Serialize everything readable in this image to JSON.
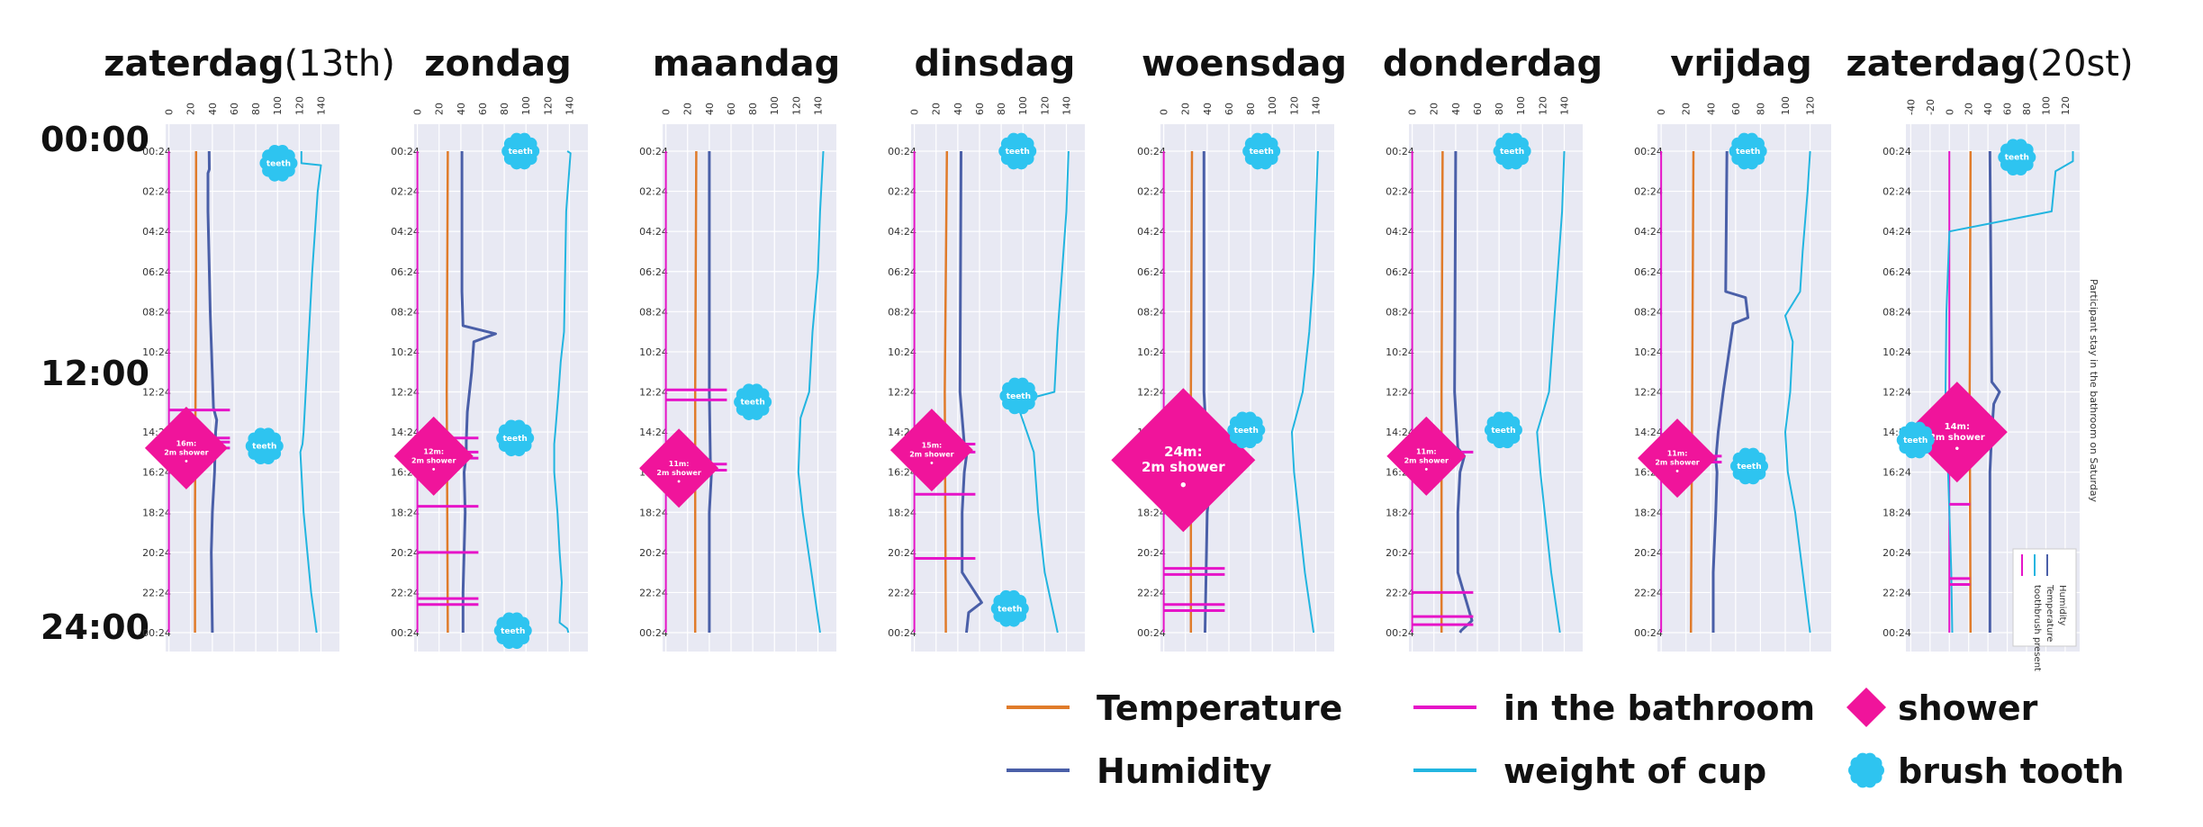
{
  "chart_data": {
    "type": "line",
    "row_labels": [
      "00:00",
      "12:00",
      "24:00"
    ],
    "y_tick_labels": [
      "00:24",
      "02:24",
      "04:24",
      "06:24",
      "08:24",
      "10:24",
      "12:24",
      "14:24",
      "16:24",
      "18:24",
      "20:24",
      "22:24",
      "00:24"
    ],
    "side_note": "Participant stay in the bathroom on Saturday",
    "colors": {
      "temperature": "#e07b2a",
      "humidity": "#4a5fa8",
      "bathroom": "#e614c8",
      "cup": "#22b5e0",
      "shower": "#f0149b",
      "brush": "#2ec4f0",
      "panel_bg": "#e8e9f3"
    },
    "legend": {
      "temperature": "Temperature",
      "humidity": "Humidity",
      "bathroom": "in the bathroom",
      "cup": "weight of cup",
      "shower": "shower",
      "brush": "brush tooth"
    },
    "inner_legend": [
      "Humidity",
      "Temperature",
      "toothbrush present"
    ],
    "days": [
      {
        "name": "zaterdag",
        "suffix": "(13th)",
        "x_ticks": [
          0,
          20,
          40,
          60,
          80,
          100,
          120,
          140
        ],
        "xlim": [
          -3,
          157
        ],
        "temperature": [
          [
            0,
            25
          ],
          [
            6,
            25
          ],
          [
            12,
            24.5
          ],
          [
            18,
            24
          ],
          [
            24,
            24
          ]
        ],
        "humidity": [
          [
            0,
            37
          ],
          [
            0.9,
            37.2
          ],
          [
            1.1,
            36
          ],
          [
            3,
            36
          ],
          [
            8,
            38
          ],
          [
            12.8,
            41
          ],
          [
            13.4,
            44
          ],
          [
            14,
            43
          ],
          [
            16,
            42
          ],
          [
            18,
            40
          ],
          [
            20,
            39
          ],
          [
            24,
            40
          ]
        ],
        "cup": [
          [
            0,
            122
          ],
          [
            0.6,
            122
          ],
          [
            0.7,
            140
          ],
          [
            2,
            137
          ],
          [
            6,
            132
          ],
          [
            10,
            128
          ],
          [
            14,
            124
          ],
          [
            14.6,
            123
          ],
          [
            15,
            121
          ],
          [
            18,
            124
          ],
          [
            22,
            131
          ],
          [
            24,
            136
          ]
        ],
        "bathroom": [
          12.9,
          14.3,
          14.5,
          14.8
        ],
        "showers": [
          {
            "t": 14.8,
            "x": 16,
            "size": 46,
            "label": "16m:\n2m shower"
          }
        ],
        "brushes": [
          {
            "t": 0.6,
            "x": 101
          },
          {
            "t": 14.7,
            "x": 88
          }
        ]
      },
      {
        "name": "zondag",
        "suffix": "",
        "x_ticks": [
          0,
          20,
          40,
          60,
          80,
          100,
          120,
          140
        ],
        "xlim": [
          -3,
          157
        ],
        "temperature": [
          [
            0,
            28
          ],
          [
            12,
            27
          ],
          [
            24,
            28
          ]
        ],
        "humidity": [
          [
            0,
            41
          ],
          [
            7,
            41
          ],
          [
            8.7,
            42
          ],
          [
            9.1,
            72
          ],
          [
            9.5,
            52
          ],
          [
            11,
            50
          ],
          [
            12,
            48
          ],
          [
            13,
            46
          ],
          [
            14.5,
            45
          ],
          [
            15.2,
            45
          ],
          [
            16,
            43
          ],
          [
            18,
            44
          ],
          [
            20,
            43
          ],
          [
            22,
            42
          ],
          [
            24,
            42
          ]
        ],
        "cup": [
          [
            0,
            138
          ],
          [
            0.1,
            141
          ],
          [
            3,
            137
          ],
          [
            6,
            136
          ],
          [
            9,
            135
          ],
          [
            10.5,
            132
          ],
          [
            12,
            130
          ],
          [
            14,
            127
          ],
          [
            14.6,
            126
          ],
          [
            16,
            126
          ],
          [
            18,
            129
          ],
          [
            20,
            131
          ],
          [
            21.5,
            133
          ],
          [
            23.5,
            131
          ],
          [
            23.8,
            138
          ],
          [
            24,
            139
          ]
        ],
        "bathroom": [
          14.3,
          15,
          15.3,
          17.7,
          20,
          22.3,
          22.6
        ],
        "showers": [
          {
            "t": 15.2,
            "x": 15,
            "size": 44,
            "label": "12m:\n2m shower"
          }
        ],
        "brushes": [
          {
            "t": 0,
            "x": 95
          },
          {
            "t": 14.3,
            "x": 90
          },
          {
            "t": 23.9,
            "x": 88
          }
        ]
      },
      {
        "name": "maandag",
        "suffix": "",
        "x_ticks": [
          0,
          20,
          40,
          60,
          80,
          100,
          120,
          140
        ],
        "xlim": [
          -3,
          157
        ],
        "temperature": [
          [
            0,
            28
          ],
          [
            12,
            27
          ],
          [
            24,
            27
          ]
        ],
        "humidity": [
          [
            0,
            40
          ],
          [
            12,
            40
          ],
          [
            15.6,
            41
          ],
          [
            16,
            42
          ],
          [
            18,
            40
          ],
          [
            22,
            40
          ],
          [
            24,
            40
          ]
        ],
        "cup": [
          [
            0,
            145
          ],
          [
            3,
            142
          ],
          [
            6,
            140
          ],
          [
            9,
            135
          ],
          [
            12,
            132
          ],
          [
            13.3,
            124
          ],
          [
            16,
            122
          ],
          [
            18,
            126
          ],
          [
            21,
            134
          ],
          [
            24,
            142
          ]
        ],
        "bathroom": [
          11.9,
          12.4,
          15.6,
          15.9
        ],
        "showers": [
          {
            "t": 15.8,
            "x": 12,
            "size": 44,
            "label": "11m:\n2m shower"
          }
        ],
        "brushes": [
          {
            "t": 12.5,
            "x": 80
          }
        ]
      },
      {
        "name": "dinsdag",
        "suffix": "",
        "x_ticks": [
          0,
          20,
          40,
          60,
          80,
          100,
          120,
          140
        ],
        "xlim": [
          -3,
          157
        ],
        "temperature": [
          [
            0,
            30
          ],
          [
            12,
            28
          ],
          [
            24,
            29
          ]
        ],
        "humidity": [
          [
            0,
            43
          ],
          [
            12,
            42
          ],
          [
            14.6,
            46
          ],
          [
            15.2,
            48
          ],
          [
            16,
            46
          ],
          [
            18,
            44
          ],
          [
            21,
            44
          ],
          [
            22.5,
            62
          ],
          [
            23,
            50
          ],
          [
            24,
            48
          ]
        ],
        "cup": [
          [
            0,
            142
          ],
          [
            3,
            140
          ],
          [
            6,
            136
          ],
          [
            9,
            132
          ],
          [
            12,
            129
          ],
          [
            12.5,
            94
          ],
          [
            15,
            110
          ],
          [
            18,
            114
          ],
          [
            21,
            120
          ],
          [
            24,
            132
          ]
        ],
        "bathroom": [
          14.6,
          15,
          17.1,
          20.3
        ],
        "showers": [
          {
            "t": 14.9,
            "x": 16,
            "size": 46,
            "label": "15m:\n2m shower"
          }
        ],
        "brushes": [
          {
            "t": 0,
            "x": 95
          },
          {
            "t": 12.2,
            "x": 96
          },
          {
            "t": 22.8,
            "x": 88
          }
        ]
      },
      {
        "name": "woensdag",
        "suffix": "",
        "x_ticks": [
          0,
          20,
          40,
          60,
          80,
          100,
          120,
          140
        ],
        "xlim": [
          -3,
          157
        ],
        "temperature": [
          [
            0,
            26
          ],
          [
            12,
            25
          ],
          [
            24,
            25
          ]
        ],
        "humidity": [
          [
            0,
            37
          ],
          [
            12,
            37
          ],
          [
            15.1,
            40
          ],
          [
            15.4,
            48
          ],
          [
            16,
            44
          ],
          [
            18,
            40
          ],
          [
            21,
            39
          ],
          [
            24,
            38
          ]
        ],
        "cup": [
          [
            0,
            142
          ],
          [
            3,
            140
          ],
          [
            6,
            138
          ],
          [
            9,
            134
          ],
          [
            12,
            128
          ],
          [
            14,
            118
          ],
          [
            16,
            120
          ],
          [
            18,
            124
          ],
          [
            21,
            130
          ],
          [
            24,
            138
          ]
        ],
        "bathroom": [
          20.8,
          21.1,
          22.6,
          22.9
        ],
        "showers": [
          {
            "t": 15.4,
            "x": 18,
            "size": 80,
            "label": "24m:\n2m shower"
          }
        ],
        "brushes": [
          {
            "t": 0,
            "x": 90
          },
          {
            "t": 13.9,
            "x": 76
          }
        ]
      },
      {
        "name": "donderdag",
        "suffix": "",
        "x_ticks": [
          0,
          20,
          40,
          60,
          80,
          100,
          120,
          140
        ],
        "xlim": [
          -3,
          157
        ],
        "temperature": [
          [
            0,
            28
          ],
          [
            12,
            27
          ],
          [
            24,
            27
          ]
        ],
        "humidity": [
          [
            0,
            40
          ],
          [
            12,
            39
          ],
          [
            14.8,
            42
          ],
          [
            15.2,
            48
          ],
          [
            16,
            44
          ],
          [
            18,
            42
          ],
          [
            21,
            42
          ],
          [
            23.4,
            55
          ],
          [
            23.9,
            45
          ],
          [
            24,
            44
          ]
        ],
        "cup": [
          [
            0,
            140
          ],
          [
            3,
            138
          ],
          [
            6,
            134
          ],
          [
            9,
            130
          ],
          [
            12,
            126
          ],
          [
            14,
            115
          ],
          [
            16,
            118
          ],
          [
            18,
            122
          ],
          [
            21,
            128
          ],
          [
            24,
            136
          ]
        ],
        "bathroom": [
          15,
          22,
          23.2,
          23.6
        ],
        "showers": [
          {
            "t": 15.2,
            "x": 13,
            "size": 44,
            "label": "11m:\n2m shower"
          }
        ],
        "brushes": [
          {
            "t": 0,
            "x": 92
          },
          {
            "t": 13.9,
            "x": 84
          }
        ]
      },
      {
        "name": "vrijdag",
        "suffix": "",
        "x_ticks": [
          0,
          20,
          40,
          60,
          80,
          100,
          120
        ],
        "xlim": [
          -3,
          137
        ],
        "temperature": [
          [
            0,
            26
          ],
          [
            12,
            25
          ],
          [
            24,
            24
          ]
        ],
        "humidity": [
          [
            0,
            53
          ],
          [
            7,
            52
          ],
          [
            7.3,
            68
          ],
          [
            8.3,
            70
          ],
          [
            8.6,
            58
          ],
          [
            12,
            50
          ],
          [
            14,
            46
          ],
          [
            15.4,
            44
          ],
          [
            16,
            45
          ],
          [
            18,
            44
          ],
          [
            21,
            42
          ],
          [
            24,
            42
          ]
        ],
        "cup": [
          [
            0,
            120
          ],
          [
            2,
            118
          ],
          [
            5,
            114
          ],
          [
            7,
            112
          ],
          [
            8.2,
            100
          ],
          [
            9.5,
            106
          ],
          [
            12,
            104
          ],
          [
            14,
            100
          ],
          [
            16,
            102
          ],
          [
            18,
            108
          ],
          [
            21,
            114
          ],
          [
            24,
            120
          ]
        ],
        "bathroom": [
          15.2,
          15.5
        ],
        "showers": [
          {
            "t": 15.3,
            "x": 13,
            "size": 44,
            "label": "11m:\n2m shower"
          }
        ],
        "brushes": [
          {
            "t": 0,
            "x": 70
          },
          {
            "t": 15.7,
            "x": 71
          }
        ]
      },
      {
        "name": "zaterdag",
        "suffix": "(20st)",
        "x_ticks": [
          -40,
          -20,
          0,
          20,
          40,
          60,
          80,
          100,
          120
        ],
        "xlim": [
          -45,
          135
        ],
        "temperature": [
          [
            0,
            22
          ],
          [
            12,
            21
          ],
          [
            24,
            22
          ]
        ],
        "humidity": [
          [
            0,
            42
          ],
          [
            11.5,
            44
          ],
          [
            12,
            52
          ],
          [
            12.6,
            46
          ],
          [
            14,
            44
          ],
          [
            16,
            42
          ],
          [
            18,
            42
          ],
          [
            24,
            42
          ]
        ],
        "cup": [
          [
            0,
            128
          ],
          [
            0.5,
            128
          ],
          [
            1,
            110
          ],
          [
            3,
            106
          ],
          [
            4,
            0
          ],
          [
            8,
            -3
          ],
          [
            12,
            -4
          ],
          [
            14,
            -3
          ],
          [
            15,
            -2
          ],
          [
            18,
            0
          ],
          [
            21,
            2
          ],
          [
            24,
            3
          ]
        ],
        "bathroom": [
          12.7,
          13.4,
          14.2,
          14.4,
          14.8,
          15.8,
          17.6,
          21.3,
          21.6
        ],
        "showers": [
          {
            "t": 14,
            "x": 8,
            "size": 56,
            "label": "14m:\n2m shower"
          }
        ],
        "brushes": [
          {
            "t": 0.3,
            "x": 70
          },
          {
            "t": 14.4,
            "x": -35
          }
        ]
      }
    ]
  }
}
